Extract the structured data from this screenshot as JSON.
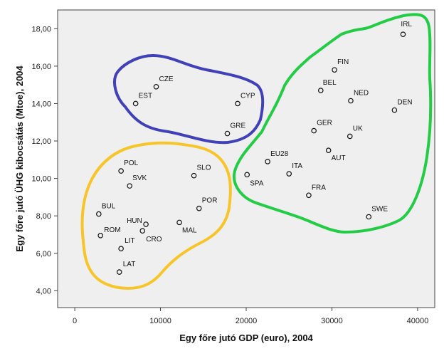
{
  "chart_data": {
    "type": "scatter",
    "xlabel": "Egy főre jutó GDP (euro), 2004",
    "ylabel": "Egy főre jutó ÜHG kibocsátás (Mtoe), 2004",
    "xlim": [
      -2000,
      42000
    ],
    "ylim": [
      3.1,
      19.0
    ],
    "x_ticks": [
      0,
      10000,
      20000,
      30000,
      40000
    ],
    "x_tick_labels": [
      "0",
      "10000",
      "20000",
      "30000",
      "40000"
    ],
    "y_ticks": [
      4,
      6,
      8,
      10,
      12,
      14,
      16,
      18
    ],
    "y_tick_labels": [
      "4,00",
      "6,00",
      "8,00",
      "10,00",
      "12,00",
      "14,00",
      "16,00",
      "18,00"
    ],
    "grid": false,
    "background": "#efefef",
    "points": [
      {
        "label": "IRL",
        "x": 38300,
        "y": 17.7
      },
      {
        "label": "FIN",
        "x": 30300,
        "y": 15.8
      },
      {
        "label": "BEL",
        "x": 28700,
        "y": 14.7
      },
      {
        "label": "NED",
        "x": 32200,
        "y": 14.15
      },
      {
        "label": "DEN",
        "x": 37300,
        "y": 13.65
      },
      {
        "label": "GER",
        "x": 27900,
        "y": 12.55
      },
      {
        "label": "UK",
        "x": 32100,
        "y": 12.25
      },
      {
        "label": "AUT",
        "x": 29600,
        "y": 11.5
      },
      {
        "label": "EU28",
        "x": 22500,
        "y": 10.9
      },
      {
        "label": "ITA",
        "x": 25000,
        "y": 10.25
      },
      {
        "label": "SPA",
        "x": 20100,
        "y": 10.2
      },
      {
        "label": "FRA",
        "x": 27300,
        "y": 9.1
      },
      {
        "label": "SWE",
        "x": 34300,
        "y": 7.95
      },
      {
        "label": "CZE",
        "x": 9500,
        "y": 14.9
      },
      {
        "label": "EST",
        "x": 7100,
        "y": 14.0
      },
      {
        "label": "CYP",
        "x": 19000,
        "y": 14.0
      },
      {
        "label": "GRE",
        "x": 17800,
        "y": 12.4
      },
      {
        "label": "POL",
        "x": 5400,
        "y": 10.4
      },
      {
        "label": "SVK",
        "x": 6400,
        "y": 9.6
      },
      {
        "label": "SLO",
        "x": 13900,
        "y": 10.15
      },
      {
        "label": "BUL",
        "x": 2800,
        "y": 8.1
      },
      {
        "label": "POR",
        "x": 14500,
        "y": 8.4
      },
      {
        "label": "HUN",
        "x": 8300,
        "y": 7.55
      },
      {
        "label": "ROM",
        "x": 3000,
        "y": 6.95
      },
      {
        "label": "MAL",
        "x": 12200,
        "y": 7.65
      },
      {
        "label": "CRO",
        "x": 7900,
        "y": 7.2
      },
      {
        "label": "LIT",
        "x": 5400,
        "y": 6.25
      },
      {
        "label": "LAT",
        "x": 5200,
        "y": 5.0
      }
    ],
    "groups": [
      {
        "members": [
          "IRL",
          "FIN",
          "BEL",
          "NED",
          "DEN",
          "GER",
          "UK",
          "AUT",
          "EU28",
          "ITA",
          "SPA",
          "FRA",
          "SWE"
        ],
        "color": "#22cc44"
      },
      {
        "members": [
          "CZE",
          "EST",
          "CYP",
          "GRE"
        ],
        "color": "#4040b8"
      },
      {
        "members": [
          "POL",
          "SVK",
          "SLO",
          "BUL",
          "POR",
          "HUN",
          "ROM",
          "MAL",
          "CRO",
          "LIT",
          "LAT"
        ],
        "color": "#f7c52a"
      }
    ]
  }
}
